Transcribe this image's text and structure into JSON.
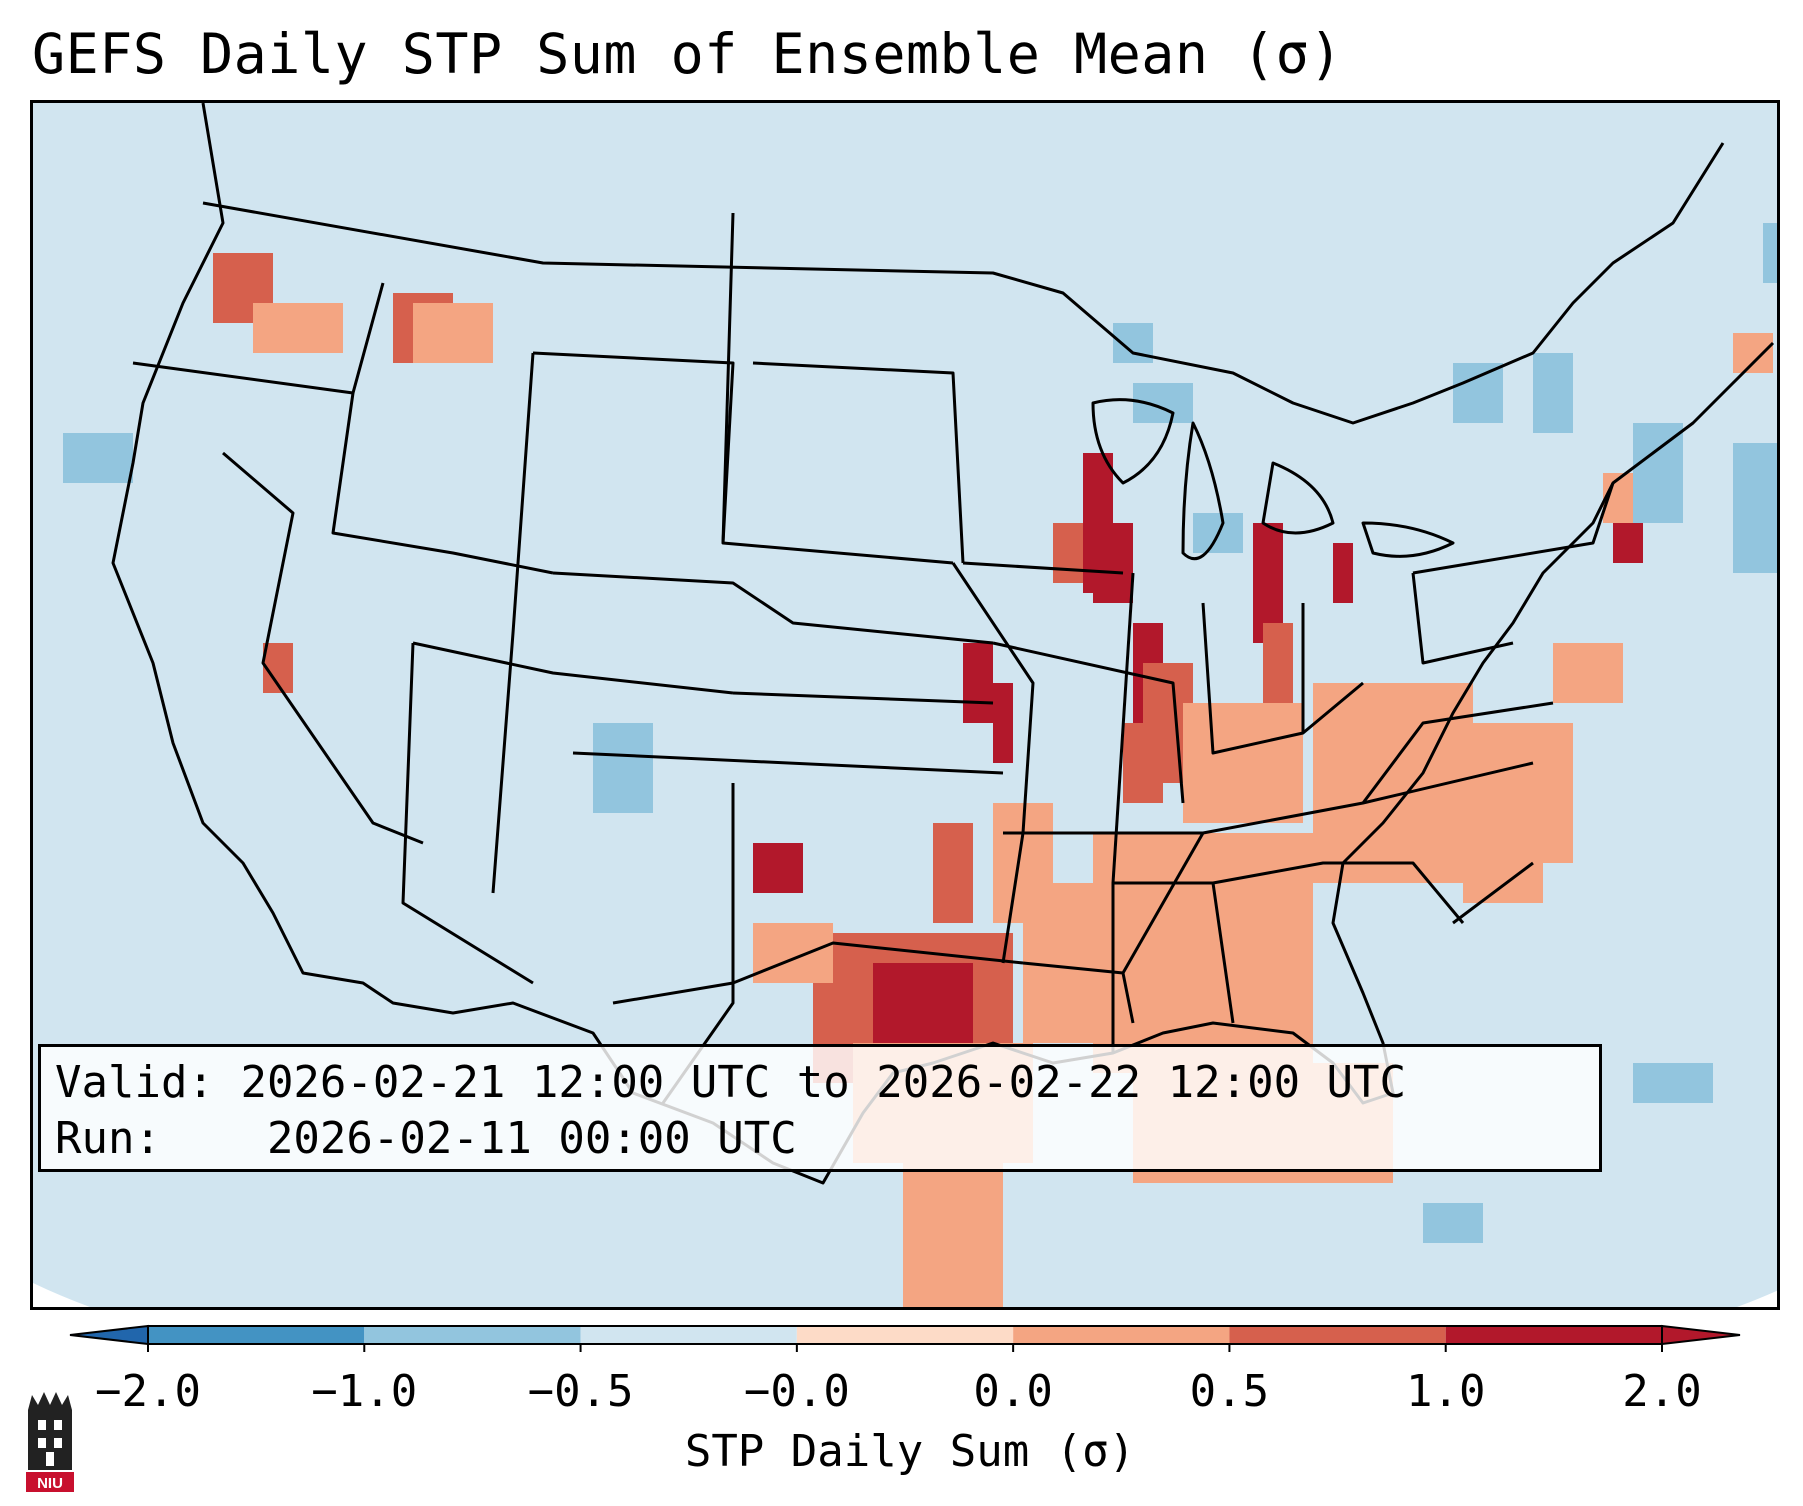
{
  "title": "GEFS Daily STP Sum of Ensemble Mean (σ)",
  "info": {
    "valid_label": "Valid:",
    "valid_value": "2026-02-21 12:00 UTC to 2026-02-22 12:00 UTC",
    "run_label": "Run:",
    "run_value": "2026-02-11 00:00 UTC"
  },
  "colorbar": {
    "label": "STP Daily Sum (σ)",
    "ticks": [
      "−2.0",
      "−1.0",
      "−0.5",
      "−0.0",
      "0.0",
      "0.5",
      "1.0",
      "2.0"
    ],
    "bin_colors": [
      "#4393c3",
      "#92c5de",
      "#d1e5f0",
      "#fddbc7",
      "#f4a582",
      "#d6604d",
      "#b2182b"
    ],
    "under_color": "#2166ac",
    "over_color": "#b2182b"
  },
  "map": {
    "background_color": "#d1e5f0",
    "border_color": "#000000",
    "region": "CONUS"
  },
  "logo": {
    "text": "NIU",
    "color": "#c8102e"
  }
}
